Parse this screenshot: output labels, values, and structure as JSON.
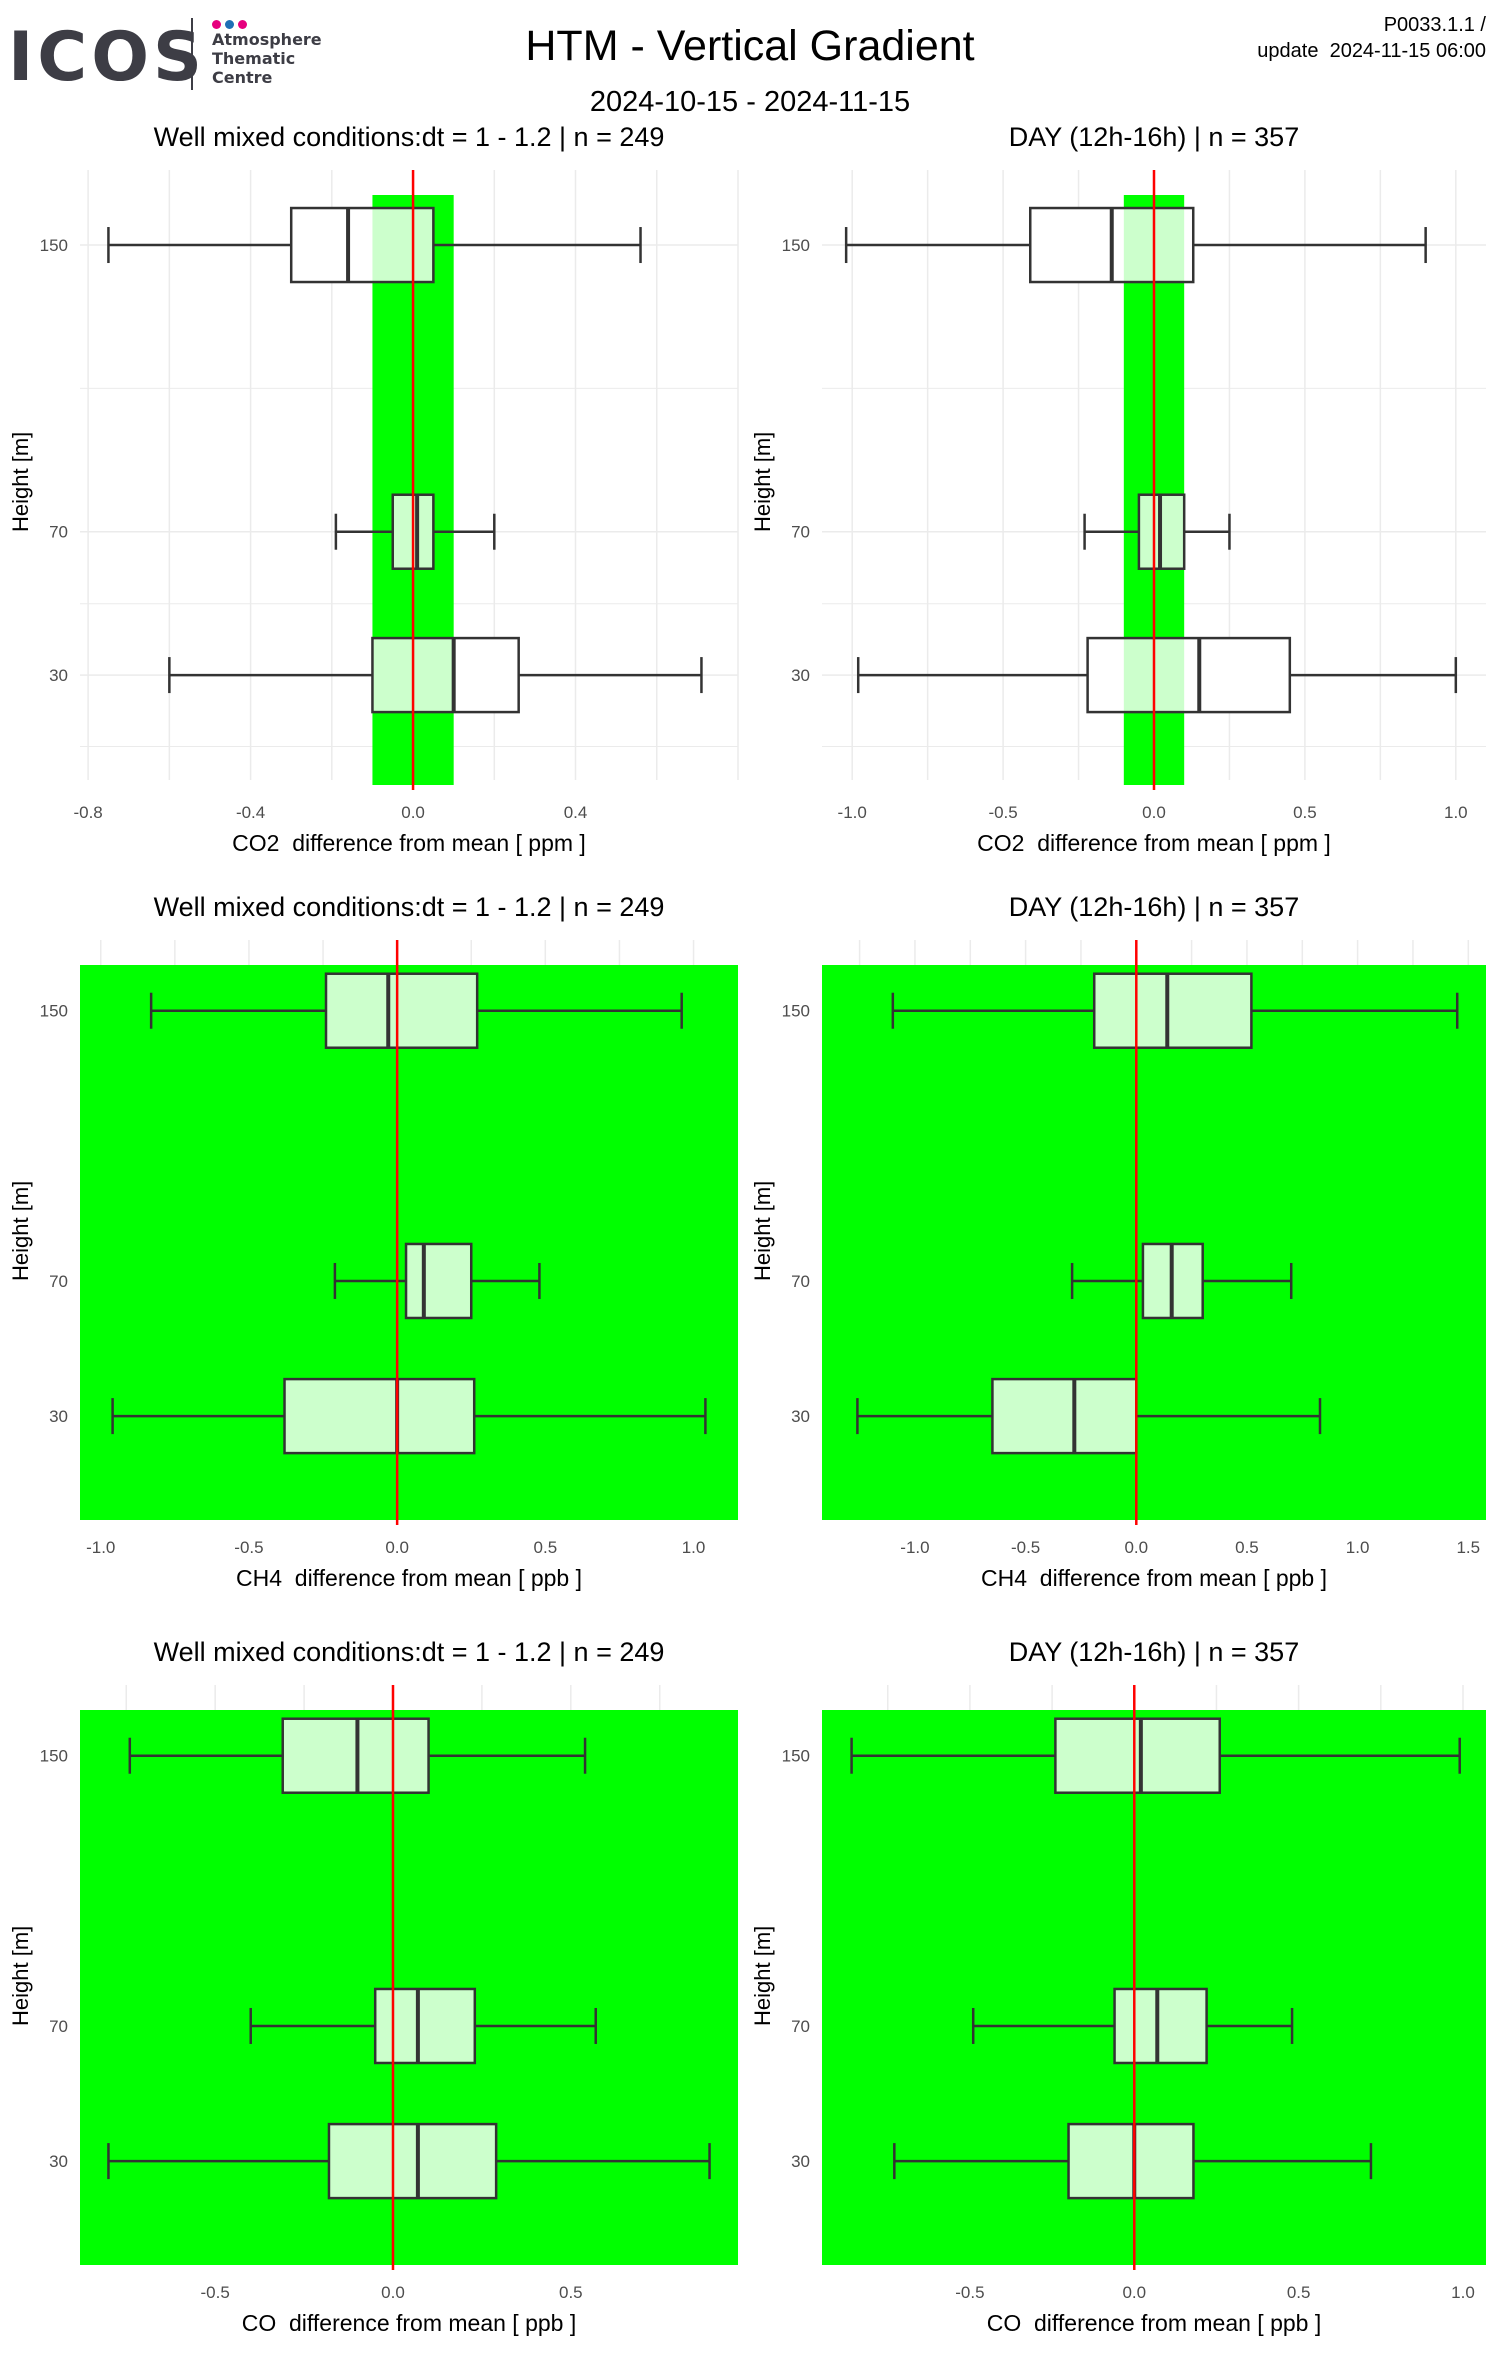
{
  "header": {
    "title": "HTM - Vertical Gradient",
    "date_range": "2024-10-15 - 2024-11-15",
    "product_id": "P0033.1.1 /",
    "update": "update  2024-11-15 06:00"
  },
  "logo": {
    "wordmark": "ICOS",
    "line1": "Atmosphere",
    "line2": "Thematic",
    "line3": "Centre",
    "dot_colors": [
      "#e6007e",
      "#1e6fb5",
      "#e6007e"
    ]
  },
  "colors": {
    "band": "#00ff00",
    "box_fill": "#ccffcc",
    "zero_line": "#ff0000",
    "box_stroke": "#333333",
    "grid": "#ebebeb"
  },
  "chart_data": [
    {
      "type": "boxplot",
      "title": "Well mixed conditions:dt = 1 - 1.2 | n = 249",
      "xlabel": "CO2  difference from mean [ ppm ]",
      "ylabel": "Height [m]",
      "xlim": [
        -0.82,
        0.8
      ],
      "xticks": [
        -0.8,
        -0.4,
        0.0,
        0.4
      ],
      "xtick_labels": [
        "-0.8",
        "-0.4",
        "0.0",
        "0.4"
      ],
      "heights": [
        "150",
        "70",
        "30"
      ],
      "band": [
        -0.1,
        0.1
      ],
      "boxes": [
        {
          "height": "150",
          "min": -0.75,
          "q1": -0.3,
          "median": -0.16,
          "q3": 0.05,
          "max": 0.56
        },
        {
          "height": "70",
          "min": -0.19,
          "q1": -0.05,
          "median": 0.01,
          "q3": 0.05,
          "max": 0.2
        },
        {
          "height": "30",
          "min": -0.6,
          "q1": -0.1,
          "median": 0.1,
          "q3": 0.26,
          "max": 0.71
        }
      ]
    },
    {
      "type": "boxplot",
      "title": "DAY (12h-16h) | n = 357",
      "xlabel": "CO2  difference from mean [ ppm ]",
      "ylabel": "Height [m]",
      "xlim": [
        -1.1,
        1.1
      ],
      "xticks": [
        -1.0,
        -0.5,
        0.0,
        0.5,
        1.0
      ],
      "xtick_labels": [
        "-1.0",
        "-0.5",
        "0.0",
        "0.5",
        "1.0"
      ],
      "heights": [
        "150",
        "70",
        "30"
      ],
      "band": [
        -0.1,
        0.1
      ],
      "boxes": [
        {
          "height": "150",
          "min": -1.02,
          "q1": -0.41,
          "median": -0.14,
          "q3": 0.13,
          "max": 0.9
        },
        {
          "height": "70",
          "min": -0.23,
          "q1": -0.05,
          "median": 0.02,
          "q3": 0.1,
          "max": 0.25
        },
        {
          "height": "30",
          "min": -0.98,
          "q1": -0.22,
          "median": 0.15,
          "q3": 0.45,
          "max": 1.0
        }
      ]
    },
    {
      "type": "boxplot",
      "title": "Well mixed conditions:dt = 1 - 1.2 | n = 249",
      "xlabel": "CH4  difference from mean [ ppb ]",
      "ylabel": "Height [m]",
      "xlim": [
        -1.07,
        1.15
      ],
      "xticks": [
        -1.0,
        -0.5,
        0.0,
        0.5,
        1.0
      ],
      "xtick_labels": [
        "-1.0",
        "-0.5",
        "0.0",
        "0.5",
        "1.0"
      ],
      "heights": [
        "150",
        "70",
        "30"
      ],
      "band": [
        -1.07,
        1.15
      ],
      "boxes": [
        {
          "height": "150",
          "min": -0.83,
          "q1": -0.24,
          "median": -0.03,
          "q3": 0.27,
          "max": 0.96
        },
        {
          "height": "70",
          "min": -0.21,
          "q1": 0.03,
          "median": 0.09,
          "q3": 0.25,
          "max": 0.48
        },
        {
          "height": "30",
          "min": -0.96,
          "q1": -0.38,
          "median": 0.0,
          "q3": 0.26,
          "max": 1.04
        }
      ]
    },
    {
      "type": "boxplot",
      "title": "DAY (12h-16h) | n = 357",
      "xlabel": "CH4  difference from mean [ ppb ]",
      "ylabel": "Height [m]",
      "xlim": [
        -1.42,
        1.58
      ],
      "xticks": [
        -1.0,
        -0.5,
        0.0,
        0.5,
        1.0,
        1.5
      ],
      "xtick_labels": [
        "-1.0",
        "-0.5",
        "0.0",
        "0.5",
        "1.0",
        "1.5"
      ],
      "heights": [
        "150",
        "70",
        "30"
      ],
      "band": [
        -1.42,
        1.58
      ],
      "boxes": [
        {
          "height": "150",
          "min": -1.1,
          "q1": -0.19,
          "median": 0.14,
          "q3": 0.52,
          "max": 1.45
        },
        {
          "height": "70",
          "min": -0.29,
          "q1": 0.03,
          "median": 0.16,
          "q3": 0.3,
          "max": 0.7
        },
        {
          "height": "30",
          "min": -1.26,
          "q1": -0.65,
          "median": -0.28,
          "q3": 0.0,
          "max": 0.83
        }
      ]
    },
    {
      "type": "boxplot",
      "title": "Well mixed conditions:dt = 1 - 1.2 | n = 249",
      "xlabel": "CO  difference from mean [ ppb ]",
      "ylabel": "Height [m]",
      "xlim": [
        -0.88,
        0.97
      ],
      "xticks": [
        -0.5,
        0.0,
        0.5
      ],
      "xtick_labels": [
        "-0.5",
        "0.0",
        "0.5"
      ],
      "heights": [
        "150",
        "70",
        "30"
      ],
      "band": [
        -0.88,
        0.97
      ],
      "boxes": [
        {
          "height": "150",
          "min": -0.74,
          "q1": -0.31,
          "median": -0.1,
          "q3": 0.1,
          "max": 0.54
        },
        {
          "height": "70",
          "min": -0.4,
          "q1": -0.05,
          "median": 0.07,
          "q3": 0.23,
          "max": 0.57
        },
        {
          "height": "30",
          "min": -0.8,
          "q1": -0.18,
          "median": 0.07,
          "q3": 0.29,
          "max": 0.89
        }
      ]
    },
    {
      "type": "boxplot",
      "title": "DAY (12h-16h) | n = 357",
      "xlabel": "CO  difference from mean [ ppb ]",
      "ylabel": "Height [m]",
      "xlim": [
        -0.95,
        1.07
      ],
      "xticks": [
        -0.5,
        0.0,
        0.5,
        1.0
      ],
      "xtick_labels": [
        "-0.5",
        "0.0",
        "0.5",
        "1.0"
      ],
      "heights": [
        "150",
        "70",
        "30"
      ],
      "band": [
        -0.95,
        1.07
      ],
      "boxes": [
        {
          "height": "150",
          "min": -0.86,
          "q1": -0.24,
          "median": 0.02,
          "q3": 0.26,
          "max": 0.99
        },
        {
          "height": "70",
          "min": -0.49,
          "q1": -0.06,
          "median": 0.07,
          "q3": 0.22,
          "max": 0.48
        },
        {
          "height": "30",
          "min": -0.73,
          "q1": -0.2,
          "median": 0.0,
          "q3": 0.18,
          "max": 0.72
        }
      ]
    }
  ]
}
